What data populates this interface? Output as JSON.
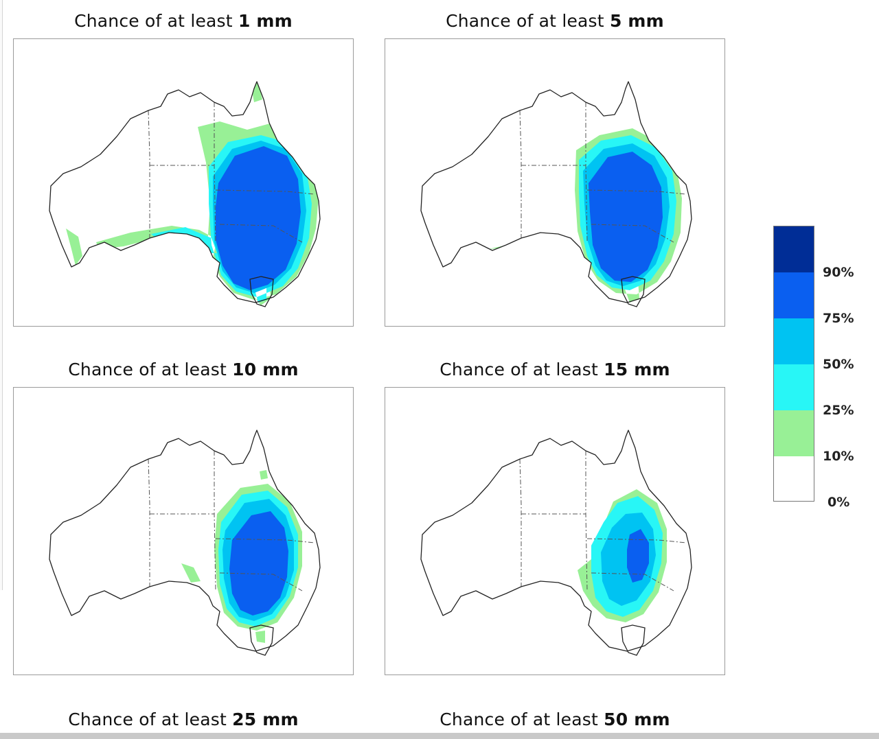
{
  "panels": [
    {
      "prefix": "Chance of at least ",
      "amount": "1 mm"
    },
    {
      "prefix": "Chance of at least ",
      "amount": "5 mm"
    },
    {
      "prefix": "Chance of at least ",
      "amount": "10 mm"
    },
    {
      "prefix": "Chance of at least ",
      "amount": "15 mm"
    },
    {
      "prefix": "Chance of at least ",
      "amount": "25 mm"
    },
    {
      "prefix": "Chance of at least ",
      "amount": "50 mm"
    }
  ],
  "legend": {
    "labels": [
      "90%",
      "75%",
      "50%",
      "25%",
      "10%",
      "0%"
    ],
    "colors": [
      "#002d96",
      "#0a5ff0",
      "#00c3f2",
      "#28f6f6",
      "#98f096",
      "#ffffff"
    ]
  },
  "map_colors": {
    "land": "#ffffff",
    "coast": "#222222",
    "border": "#555555",
    "band_10": "#98f096",
    "band_25": "#28f6f6",
    "band_50": "#00c3f2",
    "band_75": "#0a5ff0",
    "band_90": "#002d96"
  }
}
